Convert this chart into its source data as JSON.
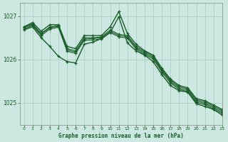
{
  "title": "Graphe pression niveau de la mer (hPa)",
  "background_color": "#cce8e0",
  "grid_color": "#aacfc8",
  "line_color": "#1a5c2a",
  "xlim": [
    -0.5,
    23
  ],
  "ylim": [
    1024.5,
    1027.3
  ],
  "yticks": [
    1025,
    1026,
    1027
  ],
  "xticks": [
    0,
    1,
    2,
    3,
    4,
    5,
    6,
    7,
    8,
    9,
    10,
    11,
    12,
    13,
    14,
    15,
    16,
    17,
    18,
    19,
    20,
    21,
    22,
    23
  ],
  "series": [
    {
      "x": [
        0,
        1,
        2,
        3,
        4,
        5,
        6,
        7,
        8,
        9,
        10,
        11,
        12,
        13,
        14,
        15,
        16,
        17,
        18,
        19,
        20,
        21,
        22,
        23
      ],
      "y": [
        1026.75,
        1026.85,
        1026.65,
        1026.8,
        1026.8,
        1026.3,
        1026.25,
        1026.55,
        1026.55,
        1026.55,
        1026.75,
        1027.1,
        1026.6,
        1026.35,
        1026.2,
        1026.1,
        1025.8,
        1025.55,
        1025.4,
        1025.35,
        1025.1,
        1025.05,
        1024.95,
        1024.85
      ],
      "lw": 1.0,
      "marker": true
    },
    {
      "x": [
        0,
        1,
        2,
        3,
        4,
        5,
        6,
        7,
        8,
        9,
        10,
        11,
        12,
        13,
        14,
        15,
        16,
        17,
        18,
        19,
        20,
        21,
        22,
        23
      ],
      "y": [
        1026.75,
        1026.82,
        1026.6,
        1026.75,
        1026.78,
        1026.25,
        1026.2,
        1026.5,
        1026.5,
        1026.52,
        1026.68,
        1026.58,
        1026.55,
        1026.3,
        1026.18,
        1026.07,
        1025.77,
        1025.52,
        1025.37,
        1025.32,
        1025.07,
        1025.02,
        1024.92,
        1024.82
      ],
      "lw": 0.8,
      "marker": true
    },
    {
      "x": [
        0,
        1,
        2,
        3,
        4,
        5,
        6,
        7,
        8,
        9,
        10,
        11,
        12,
        13,
        14,
        15,
        16,
        17,
        18,
        19,
        20,
        21,
        22,
        23
      ],
      "y": [
        1026.73,
        1026.8,
        1026.58,
        1026.73,
        1026.76,
        1026.22,
        1026.17,
        1026.47,
        1026.48,
        1026.5,
        1026.65,
        1026.55,
        1026.52,
        1026.27,
        1026.15,
        1026.04,
        1025.74,
        1025.49,
        1025.34,
        1025.29,
        1025.04,
        1024.99,
        1024.89,
        1024.79
      ],
      "lw": 0.8,
      "marker": true
    },
    {
      "x": [
        0,
        1,
        2,
        3,
        4,
        5,
        6,
        7,
        8,
        9,
        10,
        11,
        12,
        13,
        14,
        15,
        16,
        17,
        18,
        19,
        20,
        21,
        22,
        23
      ],
      "y": [
        1026.7,
        1026.78,
        1026.55,
        1026.7,
        1026.74,
        1026.19,
        1026.14,
        1026.44,
        1026.45,
        1026.47,
        1026.62,
        1026.52,
        1026.49,
        1026.24,
        1026.12,
        1026.01,
        1025.71,
        1025.46,
        1025.31,
        1025.26,
        1025.01,
        1024.96,
        1024.86,
        1024.76
      ],
      "lw": 0.8,
      "marker": true
    },
    {
      "x": [
        0,
        1,
        2,
        3,
        4,
        5
      ],
      "y": [
        1026.68,
        1026.75,
        1026.5,
        1026.3,
        1026.07,
        1025.95
      ],
      "lw": 1.0,
      "marker": true
    },
    {
      "x": [
        5,
        6,
        7,
        8,
        9,
        10,
        11
      ],
      "y": [
        1025.95,
        1025.92,
        1026.35,
        1026.4,
        1026.48,
        1026.62,
        1026.98
      ],
      "lw": 1.0,
      "marker": true
    },
    {
      "x": [
        11,
        12,
        13,
        14,
        15,
        16,
        17,
        18,
        19,
        20,
        21,
        22,
        23
      ],
      "y": [
        1026.98,
        1026.38,
        1026.2,
        1026.1,
        1025.95,
        1025.65,
        1025.4,
        1025.28,
        1025.25,
        1024.98,
        1024.92,
        1024.85,
        1024.72
      ],
      "lw": 1.0,
      "marker": true
    }
  ]
}
